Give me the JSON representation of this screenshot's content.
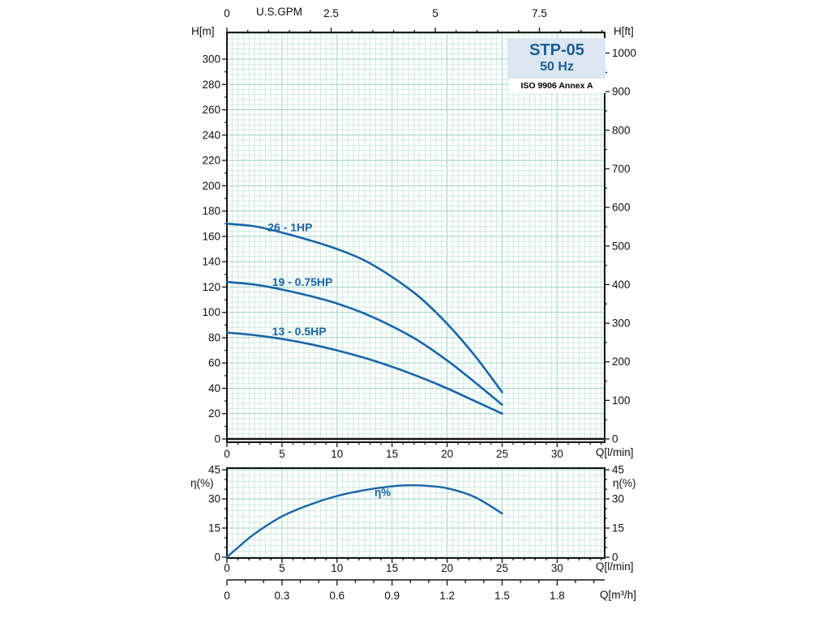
{
  "title_box": {
    "model": "STP-05",
    "frequency": "50 Hz",
    "standard": "ISO 9906 Annex A"
  },
  "axes_labels": {
    "head_m": "H[m]",
    "head_ft": "H[ft]",
    "us_gpm": "U.S.GPM",
    "flow_lmin_main": "Q[l/min]",
    "eff_left": "η(%)",
    "eff_right": "η(%)",
    "flow_lmin_eff": "Q[l/min]",
    "flow_m3h": "Q[m³/h]"
  },
  "colors": {
    "curve": "#1866a8",
    "grid_minor": "#cfe9e2",
    "grid_major": "#9ed2c6",
    "frame": "#141414",
    "text": "#111111",
    "title": "#1c5e93",
    "box_bg": "#dce6f0"
  },
  "chart_data": [
    {
      "type": "line",
      "xlabel": "Q[l/min]",
      "ylabel": "H[m]",
      "xlim": [
        0,
        34.3
      ],
      "ylim": [
        0,
        321
      ],
      "grid": true,
      "x_ticks": [
        0,
        5,
        10,
        15,
        20,
        25,
        30
      ],
      "y_ticks": [
        0,
        20,
        40,
        60,
        80,
        100,
        120,
        140,
        160,
        180,
        200,
        220,
        240,
        260,
        280,
        300
      ],
      "right_axis": {
        "label": "H[ft]",
        "ticks": [
          0,
          100,
          200,
          300,
          400,
          500,
          600,
          700,
          800,
          900,
          1000
        ],
        "m_per_ft": 0.3048
      },
      "top_axis": {
        "label": "U.S.GPM",
        "ticks": [
          0,
          2.5,
          5,
          7.5
        ],
        "lmin_per_gpm": 3.7854
      },
      "series": [
        {
          "name": "26 - 1HP",
          "x": [
            0,
            2.5,
            5,
            7.5,
            10,
            12.5,
            15,
            17.5,
            20,
            22.5,
            25
          ],
          "y": [
            170,
            168,
            163,
            157,
            150,
            141,
            128,
            112,
            91,
            66,
            37
          ],
          "label_at": {
            "q": 3.7,
            "v": 164
          }
        },
        {
          "name": "19 - 0.75HP",
          "x": [
            0,
            2.5,
            5,
            7.5,
            10,
            12.5,
            15,
            17.5,
            20,
            22.5,
            25
          ],
          "y": [
            124,
            122,
            118,
            113,
            107,
            99,
            89,
            77,
            62,
            45,
            27
          ],
          "label_at": {
            "q": 4.1,
            "v": 121
          }
        },
        {
          "name": "13 - 0.5HP",
          "x": [
            0,
            2.5,
            5,
            7.5,
            10,
            12.5,
            15,
            17.5,
            20,
            22.5,
            25
          ],
          "y": [
            84,
            82,
            79,
            75,
            70,
            64,
            57,
            49,
            40,
            30,
            20
          ],
          "label_at": {
            "q": 4.1,
            "v": 82
          }
        }
      ]
    },
    {
      "type": "line",
      "xlabel": "Q[l/min]",
      "ylabel": "η(%)",
      "xlim": [
        0,
        34.3
      ],
      "ylim": [
        0,
        46
      ],
      "grid": true,
      "x_ticks": [
        0,
        5,
        10,
        15,
        20,
        25,
        30
      ],
      "y_ticks": [
        0,
        15,
        30,
        45
      ],
      "series": [
        {
          "name": "η%",
          "x": [
            0,
            1,
            2.5,
            5,
            7.5,
            10,
            12.5,
            15,
            16.5,
            18,
            20,
            22.5,
            25
          ],
          "y": [
            0,
            5,
            12,
            21,
            27,
            31.5,
            34.5,
            36.5,
            37,
            36.8,
            35.5,
            31,
            22.5
          ],
          "label_at": {
            "q": 13.4,
            "v": 31.5
          }
        }
      ]
    }
  ],
  "flow_scale_m3h": {
    "label": "Q[m³/h]",
    "ticks": [
      0,
      0.3,
      0.6,
      0.9,
      1.2,
      1.5,
      1.8
    ],
    "lmin_per_unit": 16.667
  }
}
